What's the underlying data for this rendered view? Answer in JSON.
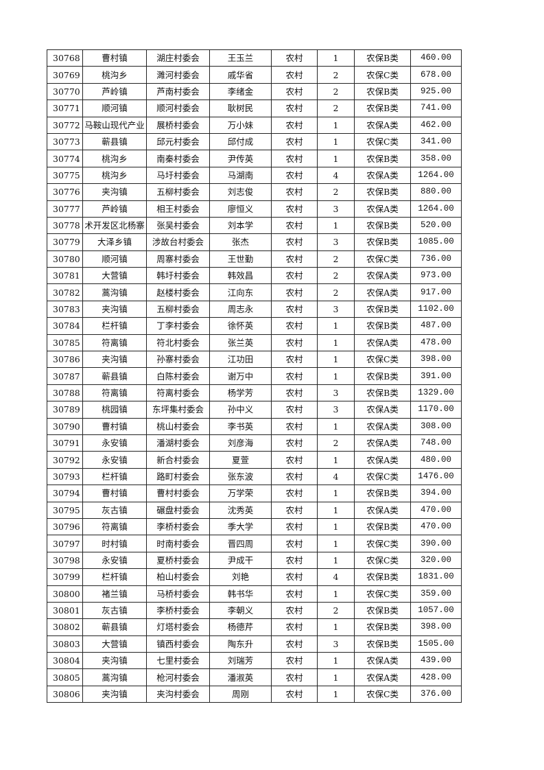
{
  "table": {
    "rows": [
      [
        "30768",
        "曹村镇",
        "湖庄村委会",
        "王玉兰",
        "农村",
        "1",
        "农保B类",
        "460.00"
      ],
      [
        "30769",
        "桃沟乡",
        "濉河村委会",
        "戚华省",
        "农村",
        "2",
        "农保C类",
        "678.00"
      ],
      [
        "30770",
        "芦岭镇",
        "芦南村委会",
        "李绪金",
        "农村",
        "2",
        "农保B类",
        "925.00"
      ],
      [
        "30771",
        "顺河镇",
        "顺河村委会",
        "耿树民",
        "农村",
        "2",
        "农保B类",
        "741.00"
      ],
      [
        "30772",
        "马鞍山现代产业",
        "展桥村委会",
        "万小妹",
        "农村",
        "1",
        "农保A类",
        "462.00"
      ],
      [
        "30773",
        "蕲县镇",
        "邱元村委会",
        "邱付成",
        "农村",
        "1",
        "农保C类",
        "341.00"
      ],
      [
        "30774",
        "桃沟乡",
        "南秦村委会",
        "尹传英",
        "农村",
        "1",
        "农保B类",
        "358.00"
      ],
      [
        "30775",
        "桃沟乡",
        "马圩村委会",
        "马湖南",
        "农村",
        "4",
        "农保A类",
        "1264.00"
      ],
      [
        "30776",
        "夹沟镇",
        "五柳村委会",
        "刘志俊",
        "农村",
        "2",
        "农保B类",
        "880.00"
      ],
      [
        "30777",
        "芦岭镇",
        "相王村委会",
        "廖恒义",
        "农村",
        "3",
        "农保A类",
        "1264.00"
      ],
      [
        "30778",
        "术开发区北杨寨",
        "张吴村委会",
        "刘本学",
        "农村",
        "1",
        "农保B类",
        "520.00"
      ],
      [
        "30779",
        "大泽乡镇",
        "涉故台村委会",
        "张杰",
        "农村",
        "3",
        "农保B类",
        "1085.00"
      ],
      [
        "30780",
        "顺河镇",
        "周寨村委会",
        "王世勤",
        "农村",
        "2",
        "农保C类",
        "736.00"
      ],
      [
        "30781",
        "大营镇",
        "韩圩村委会",
        "韩效昌",
        "农村",
        "2",
        "农保A类",
        "973.00"
      ],
      [
        "30782",
        "蒿沟镇",
        "赵楼村委会",
        "江向东",
        "农村",
        "2",
        "农保A类",
        "917.00"
      ],
      [
        "30783",
        "夹沟镇",
        "五柳村委会",
        "周志永",
        "农村",
        "3",
        "农保B类",
        "1102.00"
      ],
      [
        "30784",
        "栏杆镇",
        "丁李村委会",
        "徐怀英",
        "农村",
        "1",
        "农保B类",
        "487.00"
      ],
      [
        "30785",
        "符离镇",
        "符北村委会",
        "张兰英",
        "农村",
        "1",
        "农保A类",
        "478.00"
      ],
      [
        "30786",
        "夹沟镇",
        "孙寨村委会",
        "江功田",
        "农村",
        "1",
        "农保C类",
        "398.00"
      ],
      [
        "30787",
        "蕲县镇",
        "白陈村委会",
        "谢万中",
        "农村",
        "1",
        "农保B类",
        "391.00"
      ],
      [
        "30788",
        "符离镇",
        "符离村委会",
        "杨学芳",
        "农村",
        "3",
        "农保B类",
        "1329.00"
      ],
      [
        "30789",
        "桃园镇",
        "东坪集村委会",
        "孙中义",
        "农村",
        "3",
        "农保A类",
        "1170.00"
      ],
      [
        "30790",
        "曹村镇",
        "桃山村委会",
        "李书英",
        "农村",
        "1",
        "农保A类",
        "308.00"
      ],
      [
        "30791",
        "永安镇",
        "潘湖村委会",
        "刘彦海",
        "农村",
        "2",
        "农保A类",
        "748.00"
      ],
      [
        "30792",
        "永安镇",
        "新合村委会",
        "夏萱",
        "农村",
        "1",
        "农保A类",
        "480.00"
      ],
      [
        "30793",
        "栏杆镇",
        "路町村委会",
        "张东波",
        "农村",
        "4",
        "农保C类",
        "1476.00"
      ],
      [
        "30794",
        "曹村镇",
        "曹村村委会",
        "万学荣",
        "农村",
        "1",
        "农保B类",
        "394.00"
      ],
      [
        "30795",
        "灰古镇",
        "碾盘村委会",
        "沈秀英",
        "农村",
        "1",
        "农保A类",
        "470.00"
      ],
      [
        "30796",
        "符离镇",
        "李桥村委会",
        "季大学",
        "农村",
        "1",
        "农保B类",
        "470.00"
      ],
      [
        "30797",
        "时村镇",
        "时南村委会",
        "晋四周",
        "农村",
        "1",
        "农保C类",
        "390.00"
      ],
      [
        "30798",
        "永安镇",
        "夏桥村委会",
        "尹成干",
        "农村",
        "1",
        "农保C类",
        "320.00"
      ],
      [
        "30799",
        "栏杆镇",
        "柏山村委会",
        "刘艳",
        "农村",
        "4",
        "农保B类",
        "1831.00"
      ],
      [
        "30800",
        "褚兰镇",
        "马桥村委会",
        "韩书华",
        "农村",
        "1",
        "农保C类",
        "359.00"
      ],
      [
        "30801",
        "灰古镇",
        "李桥村委会",
        "李朝义",
        "农村",
        "2",
        "农保B类",
        "1057.00"
      ],
      [
        "30802",
        "蕲县镇",
        "灯塔村委会",
        "杨德芹",
        "农村",
        "1",
        "农保B类",
        "398.00"
      ],
      [
        "30803",
        "大营镇",
        "镇西村委会",
        "陶东升",
        "农村",
        "3",
        "农保B类",
        "1505.00"
      ],
      [
        "30804",
        "夹沟镇",
        "七里村委会",
        "刘瑞芳",
        "农村",
        "1",
        "农保A类",
        "439.00"
      ],
      [
        "30805",
        "蒿沟镇",
        "枪河村委会",
        "潘淑英",
        "农村",
        "1",
        "农保A类",
        "428.00"
      ],
      [
        "30806",
        "夹沟镇",
        "夹沟村委会",
        "周刚",
        "农村",
        "1",
        "农保C类",
        "376.00"
      ]
    ]
  }
}
